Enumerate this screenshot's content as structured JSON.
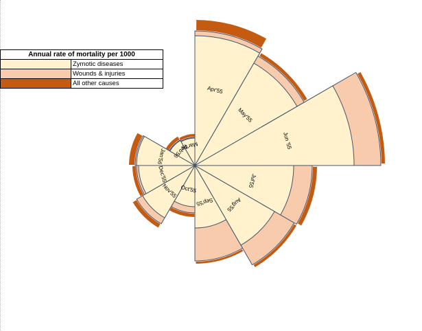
{
  "chart_data": {
    "type": "polar-area",
    "legend": {
      "title": "Annual rate of mortality per 1000",
      "position": "top-left"
    },
    "series": [
      {
        "name": "Zymotic diseases",
        "color": "#FFF2CC"
      },
      {
        "name": "Wounds & injuries",
        "color": "#F8CBAD"
      },
      {
        "name": "All other causes",
        "color": "#C55A11"
      }
    ],
    "outline_color": "#44546A",
    "categories": [
      "Apr'55",
      "May'55",
      "Jun '55",
      "Jul'55",
      "Aug'55",
      "Sep'55",
      "Oct'55",
      "Nov'55",
      "Dec'55",
      "Jan'56",
      "Feb'56",
      "Mar'56"
    ],
    "values": {
      "Zymotic diseases": [
        189,
        172,
        232,
        144,
        134,
        91,
        60,
        88,
        82,
        85,
        42,
        40
      ],
      "Wounds & injuries": [
        7,
        12,
        39,
        27,
        33,
        48,
        9,
        10,
        3,
        2,
        1,
        1
      ],
      "All other causes": [
        15,
        5,
        5,
        6,
        4,
        3,
        5,
        6,
        5,
        8,
        5,
        4
      ]
    }
  }
}
